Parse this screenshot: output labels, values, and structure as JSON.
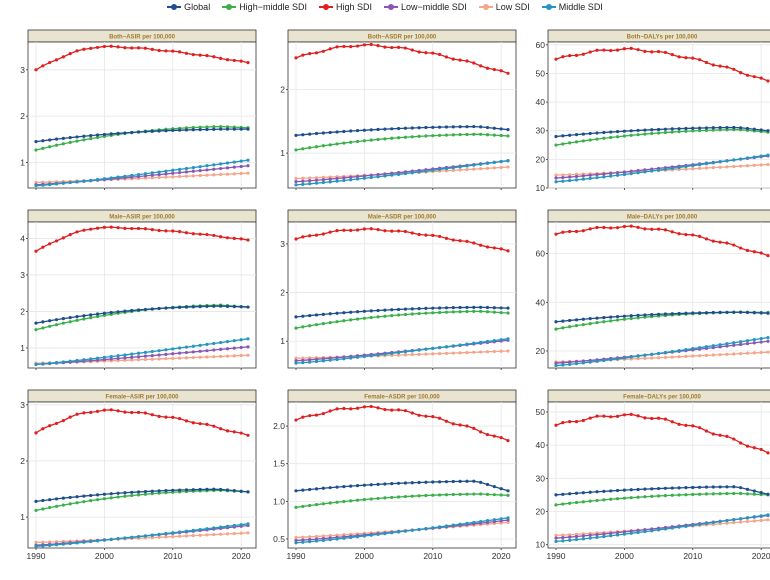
{
  "legend": {
    "items": [
      {
        "name": "Global",
        "color": "#1f4e8c"
      },
      {
        "name": "High−middle SDI",
        "color": "#3ab04a"
      },
      {
        "name": "High SDI",
        "color": "#e02020"
      },
      {
        "name": "Low−middle SDI",
        "color": "#8a56b6"
      },
      {
        "name": "Low SDI",
        "color": "#f4a58a"
      },
      {
        "name": "Middle SDI",
        "color": "#2596be"
      }
    ]
  },
  "chart_data": [
    {
      "type": "line",
      "title": "Both−ASIR per 100,000",
      "xlim": [
        1990,
        2021
      ],
      "ylim": [
        0.45,
        3.6
      ],
      "xticks": [
        1990,
        2000,
        2010,
        2020
      ],
      "yticks": [
        1,
        2,
        3
      ],
      "ytick_labels": [
        "1",
        "2",
        "3"
      ],
      "series": [
        {
          "name": "High SDI",
          "start": 3.0,
          "peak": 3.5,
          "end": 3.15
        },
        {
          "name": "Global",
          "start": 1.45,
          "peak": 1.72,
          "end": 1.72
        },
        {
          "name": "High−middle SDI",
          "start": 1.27,
          "peak": 1.78,
          "end": 1.75
        },
        {
          "name": "Middle SDI",
          "start": 0.5,
          "peak": 1.05,
          "end": 1.05
        },
        {
          "name": "Low−middle SDI",
          "start": 0.52,
          "peak": 0.93,
          "end": 0.93
        },
        {
          "name": "Low SDI",
          "start": 0.57,
          "peak": 0.77,
          "end": 0.77
        }
      ]
    },
    {
      "type": "line",
      "title": "Both−ASDR per 100,000",
      "xlim": [
        1990,
        2021
      ],
      "ylim": [
        0.45,
        2.75
      ],
      "xticks": [
        1990,
        2000,
        2010,
        2020
      ],
      "yticks": [
        1,
        2
      ],
      "ytick_labels": [
        "1",
        "2"
      ],
      "series": [
        {
          "name": "High SDI",
          "start": 2.5,
          "peak": 2.7,
          "end": 2.25
        },
        {
          "name": "Global",
          "start": 1.28,
          "peak": 1.42,
          "end": 1.37
        },
        {
          "name": "High−middle SDI",
          "start": 1.05,
          "peak": 1.3,
          "end": 1.27
        },
        {
          "name": "Middle SDI",
          "start": 0.5,
          "peak": 0.88,
          "end": 0.88
        },
        {
          "name": "Low−middle SDI",
          "start": 0.55,
          "peak": 0.88,
          "end": 0.88
        },
        {
          "name": "Low SDI",
          "start": 0.6,
          "peak": 0.78,
          "end": 0.78
        }
      ]
    },
    {
      "type": "line",
      "title": "Both−DALYs per 100,000",
      "xlim": [
        1990,
        2021
      ],
      "ylim": [
        10,
        61
      ],
      "xticks": [
        1990,
        2000,
        2010,
        2020
      ],
      "yticks": [
        10,
        20,
        30,
        40,
        50,
        60
      ],
      "ytick_labels": [
        "10",
        "20",
        "30",
        "40",
        "50",
        "60"
      ],
      "series": [
        {
          "name": "High SDI",
          "start": 55,
          "peak": 58.5,
          "end": 47.2
        },
        {
          "name": "Global",
          "start": 28,
          "peak": 31.2,
          "end": 30
        },
        {
          "name": "High−middle SDI",
          "start": 25,
          "peak": 30.5,
          "end": 29.5
        },
        {
          "name": "Middle SDI",
          "start": 12.2,
          "peak": 21.5,
          "end": 21.5
        },
        {
          "name": "Low−middle SDI",
          "start": 13.5,
          "peak": 21.2,
          "end": 21.2
        },
        {
          "name": "Low SDI",
          "start": 14.5,
          "peak": 18.2,
          "end": 18.2
        }
      ]
    },
    {
      "type": "line",
      "title": "Male−ASIR per 100,000",
      "xlim": [
        1990,
        2021
      ],
      "ylim": [
        0.45,
        4.45
      ],
      "xticks": [
        1990,
        2000,
        2010,
        2020
      ],
      "yticks": [
        1,
        2,
        3,
        4
      ],
      "ytick_labels": [
        "1",
        "2",
        "3",
        "4"
      ],
      "series": [
        {
          "name": "High SDI",
          "start": 3.65,
          "peak": 4.3,
          "end": 3.95
        },
        {
          "name": "Global",
          "start": 1.68,
          "peak": 2.15,
          "end": 2.12
        },
        {
          "name": "High−middle SDI",
          "start": 1.5,
          "peak": 2.18,
          "end": 2.12
        },
        {
          "name": "Middle SDI",
          "start": 0.55,
          "peak": 1.25,
          "end": 1.25
        },
        {
          "name": "Low−middle SDI",
          "start": 0.55,
          "peak": 1.03,
          "end": 1.03
        },
        {
          "name": "Low SDI",
          "start": 0.58,
          "peak": 0.8,
          "end": 0.8
        }
      ]
    },
    {
      "type": "line",
      "title": "Male−ASDR per 100,000",
      "xlim": [
        1990,
        2021
      ],
      "ylim": [
        0.45,
        3.45
      ],
      "xticks": [
        1990,
        2000,
        2010,
        2020
      ],
      "yticks": [
        1,
        2,
        3
      ],
      "ytick_labels": [
        "1",
        "2",
        "3"
      ],
      "series": [
        {
          "name": "High SDI",
          "start": 3.1,
          "peak": 3.3,
          "end": 2.85
        },
        {
          "name": "Global",
          "start": 1.5,
          "peak": 1.7,
          "end": 1.68
        },
        {
          "name": "High−middle SDI",
          "start": 1.27,
          "peak": 1.62,
          "end": 1.58
        },
        {
          "name": "Middle SDI",
          "start": 0.55,
          "peak": 1.05,
          "end": 1.05
        },
        {
          "name": "Low−middle SDI",
          "start": 0.6,
          "peak": 1.02,
          "end": 1.02
        },
        {
          "name": "Low SDI",
          "start": 0.65,
          "peak": 0.8,
          "end": 0.8
        }
      ]
    },
    {
      "type": "line",
      "title": "Male−DALYs per 100,000",
      "xlim": [
        1990,
        2021
      ],
      "ylim": [
        13,
        73
      ],
      "xticks": [
        1990,
        2000,
        2010,
        2020
      ],
      "yticks": [
        20,
        40,
        60
      ],
      "ytick_labels": [
        "20",
        "40",
        "60"
      ],
      "series": [
        {
          "name": "High SDI",
          "start": 68,
          "peak": 71,
          "end": 59
        },
        {
          "name": "Global",
          "start": 32,
          "peak": 36,
          "end": 35.5
        },
        {
          "name": "High−middle SDI",
          "start": 29,
          "peak": 36,
          "end": 35.8
        },
        {
          "name": "Middle SDI",
          "start": 14,
          "peak": 25.5,
          "end": 25.5
        },
        {
          "name": "Low−middle SDI",
          "start": 15,
          "peak": 24,
          "end": 24
        },
        {
          "name": "Low SDI",
          "start": 15.5,
          "peak": 19.5,
          "end": 19.5
        }
      ]
    },
    {
      "type": "line",
      "title": "Female−ASIR per 100,000",
      "xlim": [
        1990,
        2021
      ],
      "ylim": [
        0.45,
        3.05
      ],
      "xticks": [
        1990,
        2000,
        2010,
        2020
      ],
      "yticks": [
        1,
        2,
        3
      ],
      "ytick_labels": [
        "1",
        "2",
        "3"
      ],
      "series": [
        {
          "name": "High SDI",
          "start": 2.5,
          "peak": 2.9,
          "end": 2.45
        },
        {
          "name": "Global",
          "start": 1.28,
          "peak": 1.5,
          "end": 1.45
        },
        {
          "name": "High−middle SDI",
          "start": 1.12,
          "peak": 1.48,
          "end": 1.45
        },
        {
          "name": "Middle SDI",
          "start": 0.48,
          "peak": 0.88,
          "end": 0.88
        },
        {
          "name": "Low−middle SDI",
          "start": 0.5,
          "peak": 0.85,
          "end": 0.85
        },
        {
          "name": "Low SDI",
          "start": 0.55,
          "peak": 0.72,
          "end": 0.72
        }
      ]
    },
    {
      "type": "line",
      "title": "Female−ASDR per 100,000",
      "xlim": [
        1990,
        2021
      ],
      "ylim": [
        0.38,
        2.32
      ],
      "xticks": [
        1990,
        2000,
        2010,
        2020
      ],
      "yticks": [
        0.5,
        1.0,
        1.5,
        2.0
      ],
      "ytick_labels": [
        "0.5",
        "1.0",
        "1.5",
        "2.0"
      ],
      "series": [
        {
          "name": "High SDI",
          "start": 2.08,
          "peak": 2.25,
          "end": 1.8
        },
        {
          "name": "Global",
          "start": 1.14,
          "peak": 1.27,
          "end": 1.14
        },
        {
          "name": "High−middle SDI",
          "start": 0.92,
          "peak": 1.1,
          "end": 1.08
        },
        {
          "name": "Middle SDI",
          "start": 0.45,
          "peak": 0.78,
          "end": 0.78
        },
        {
          "name": "Low−middle SDI",
          "start": 0.48,
          "peak": 0.75,
          "end": 0.75
        },
        {
          "name": "Low SDI",
          "start": 0.52,
          "peak": 0.72,
          "end": 0.72
        }
      ]
    },
    {
      "type": "line",
      "title": "Female−DALYs per 100,000",
      "xlim": [
        1990,
        2021
      ],
      "ylim": [
        9,
        53
      ],
      "xticks": [
        1990,
        2000,
        2010,
        2020
      ],
      "yticks": [
        10,
        20,
        30,
        40,
        50
      ],
      "ytick_labels": [
        "10",
        "20",
        "30",
        "40",
        "50"
      ],
      "series": [
        {
          "name": "High SDI",
          "start": 46,
          "peak": 49,
          "end": 37.5
        },
        {
          "name": "Global",
          "start": 25,
          "peak": 27.5,
          "end": 25.2
        },
        {
          "name": "High−middle SDI",
          "start": 22,
          "peak": 25.5,
          "end": 25
        },
        {
          "name": "Middle SDI",
          "start": 11,
          "peak": 19,
          "end": 19
        },
        {
          "name": "Low−middle SDI",
          "start": 12,
          "peak": 18.8,
          "end": 18.8
        },
        {
          "name": "Low SDI",
          "start": 12.8,
          "peak": 17.5,
          "end": 17.5
        }
      ]
    }
  ]
}
